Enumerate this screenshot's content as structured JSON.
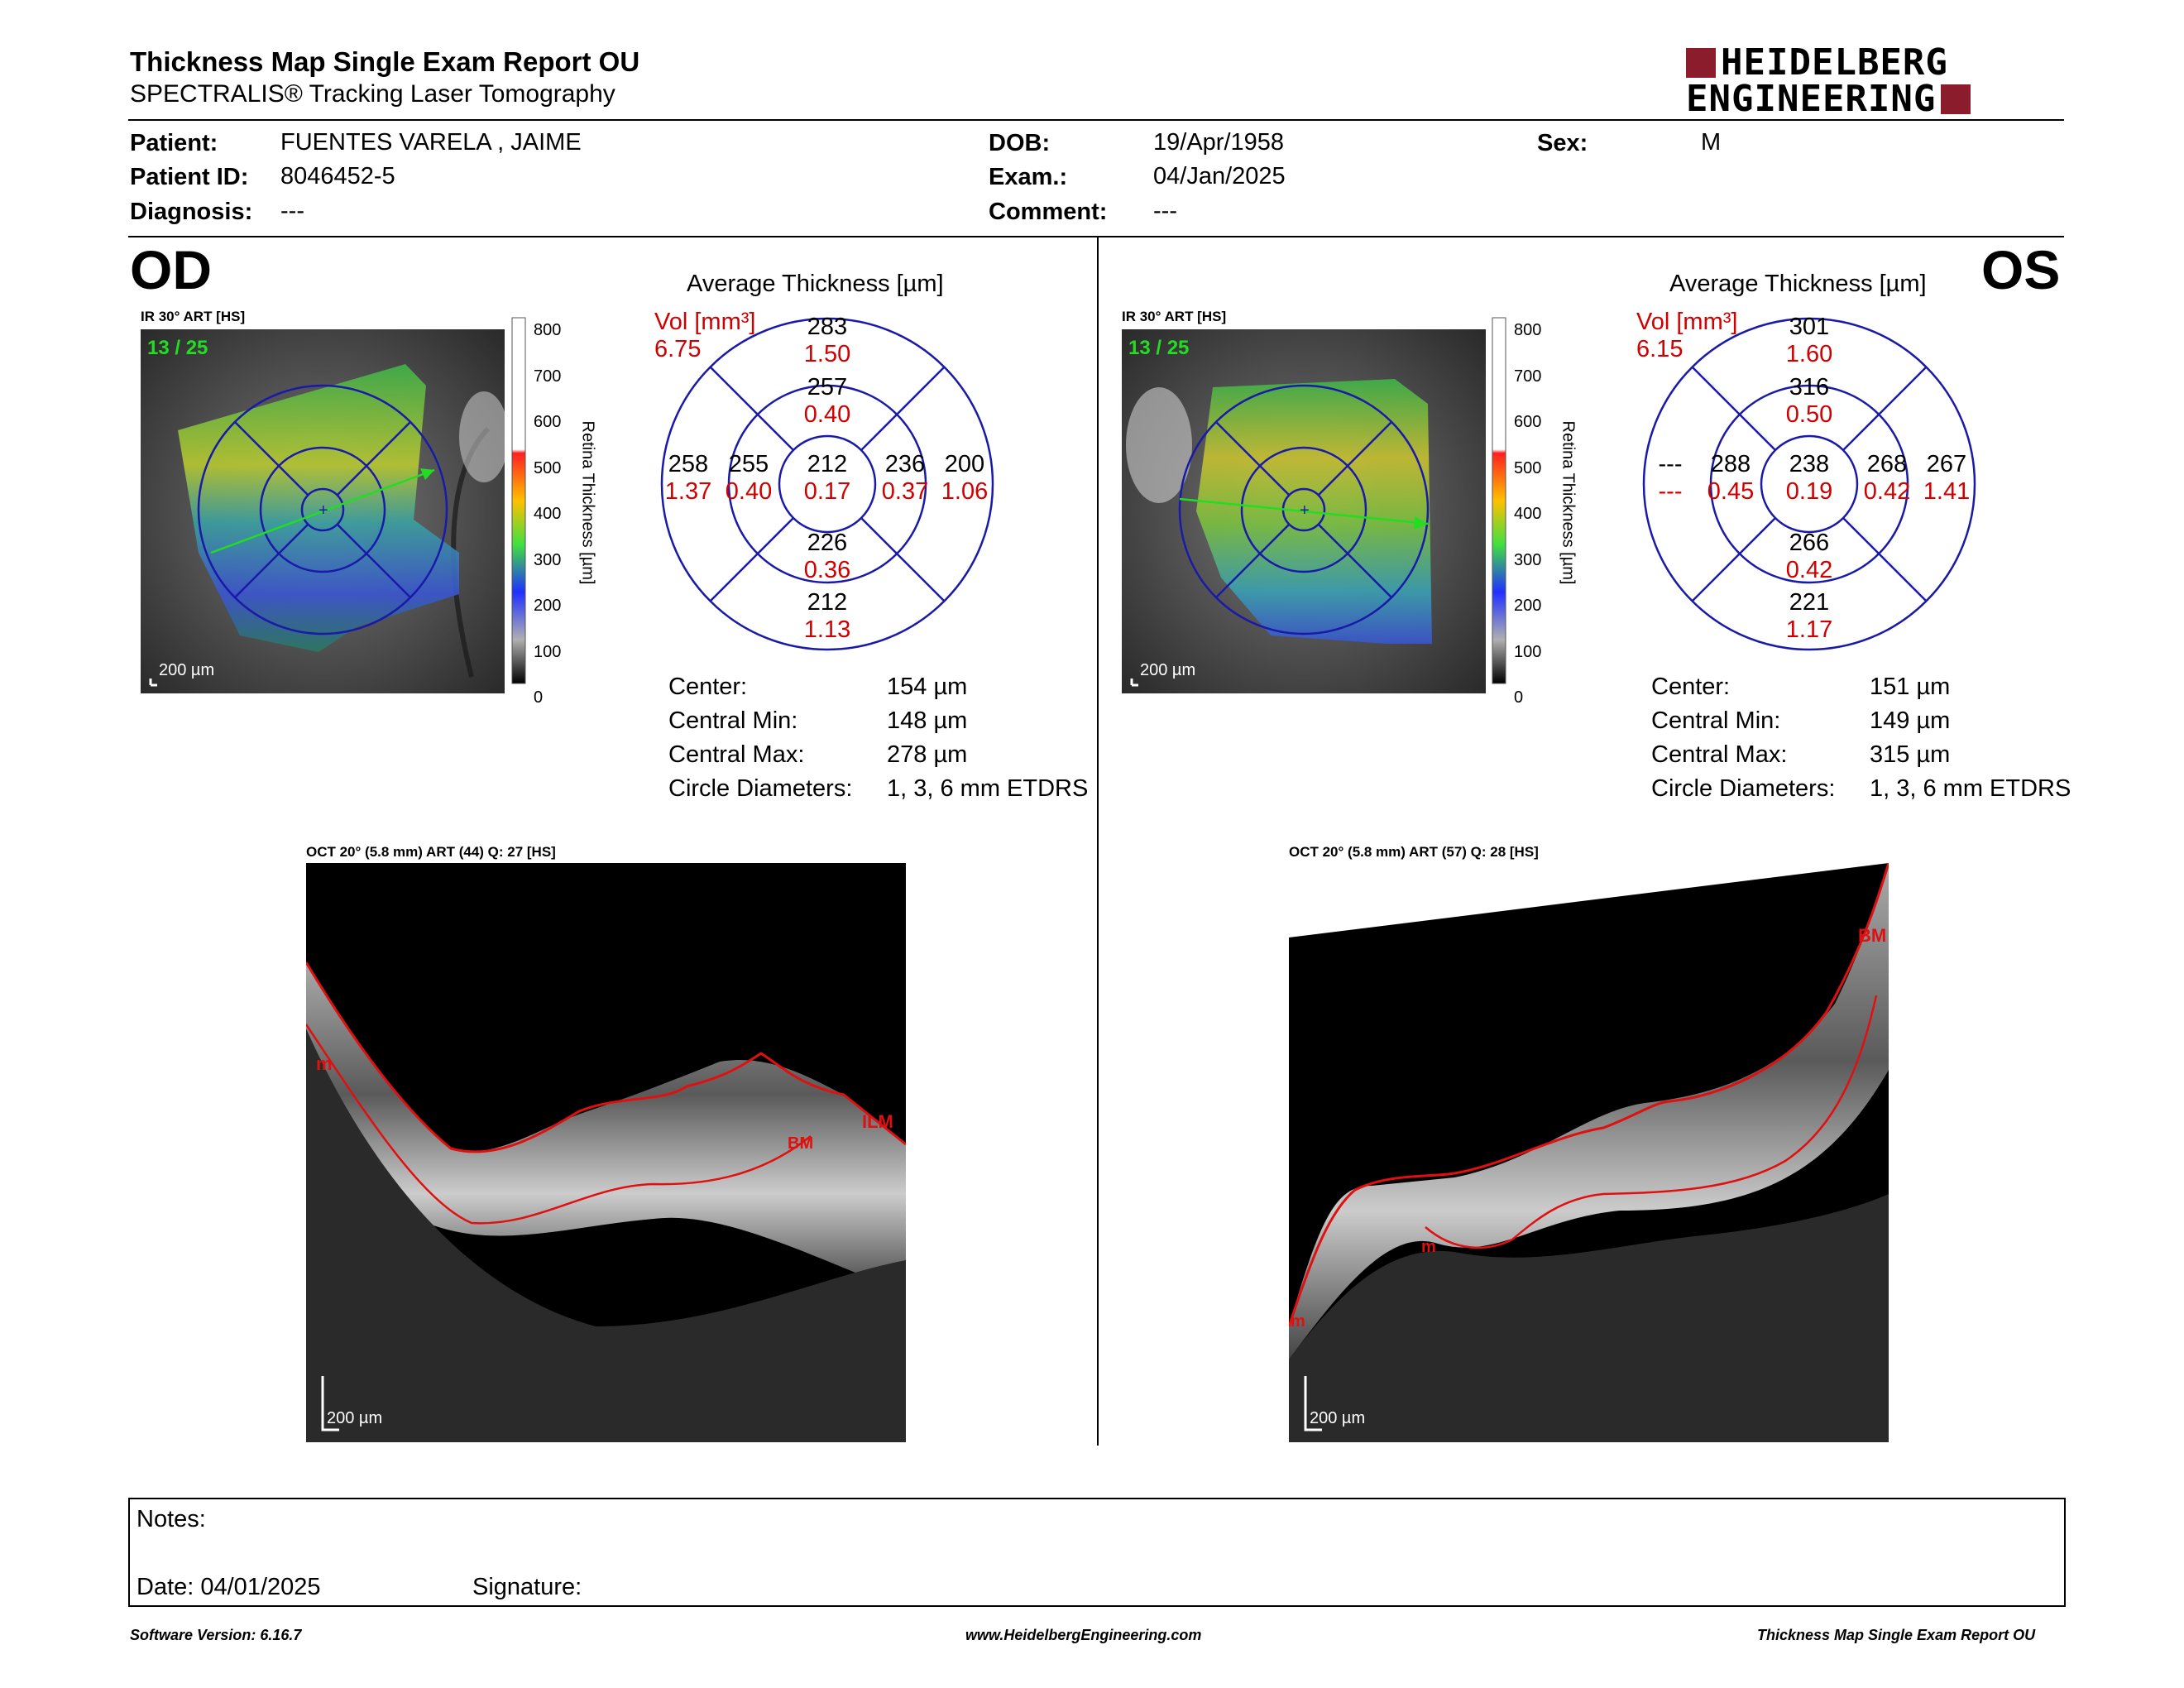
{
  "report": {
    "title": "Thickness Map Single Exam Report OU",
    "subtitle": "SPECTRALIS® Tracking Laser Tomography",
    "logo_line1": "HEIDELBERG",
    "logo_line2": "ENGINEERING"
  },
  "patient": {
    "patient_label": "Patient:",
    "patient_value": "FUENTES VARELA  , JAIME",
    "id_label": "Patient ID:",
    "id_value": "8046452-5",
    "diagnosis_label": "Diagnosis:",
    "diagnosis_value": "---",
    "dob_label": "DOB:",
    "dob_value": "19/Apr/1958",
    "exam_label": "Exam.:",
    "exam_value": "04/Jan/2025",
    "comment_label": "Comment:",
    "comment_value": "---",
    "sex_label": "Sex:",
    "sex_value": "M"
  },
  "od": {
    "eye": "OD",
    "ir_label": "IR 30° ART [HS]",
    "frame": "13 / 25",
    "scale": "200 µm",
    "scale_ticks": [
      "800",
      "700",
      "600",
      "500",
      "400",
      "300",
      "200",
      "100",
      "0"
    ],
    "scale_axis": "Retina  Thickness [µm]",
    "avg_title": "Average Thickness [µm]",
    "vol_label": "Vol [mm³]",
    "vol_value": "6.75",
    "sectors": {
      "outer_top": [
        "283",
        "1.50"
      ],
      "inner_top": [
        "257",
        "0.40"
      ],
      "outer_left": [
        "258",
        "1.37"
      ],
      "inner_left": [
        "255",
        "0.40"
      ],
      "center": [
        "212",
        "0.17"
      ],
      "inner_right": [
        "236",
        "0.37"
      ],
      "outer_right": [
        "200",
        "1.06"
      ],
      "inner_bottom": [
        "226",
        "0.36"
      ],
      "outer_bottom": [
        "212",
        "1.13"
      ]
    },
    "stats": [
      {
        "label": "Center:",
        "value": "154 µm"
      },
      {
        "label": "Central Min:",
        "value": "148 µm"
      },
      {
        "label": "Central Max:",
        "value": "278 µm"
      },
      {
        "label": "Circle Diameters:",
        "value": "1, 3, 6 mm ETDRS"
      }
    ],
    "oct_label": "OCT 20° (5.8 mm) ART (44) Q: 27 [HS]",
    "oct_scale": "200 µm",
    "oct_markers": [
      "m",
      "ILM",
      "BM"
    ]
  },
  "os": {
    "eye": "OS",
    "ir_label": "IR 30° ART [HS]",
    "frame": "13 / 25",
    "scale": "200 µm",
    "scale_ticks": [
      "800",
      "700",
      "600",
      "500",
      "400",
      "300",
      "200",
      "100",
      "0"
    ],
    "scale_axis": "Retina  Thickness [µm]",
    "avg_title": "Average Thickness [µm]",
    "vol_label": "Vol [mm³]",
    "vol_value": "6.15",
    "sectors": {
      "outer_top": [
        "301",
        "1.60"
      ],
      "inner_top": [
        "316",
        "0.50"
      ],
      "outer_left": [
        "---",
        "---"
      ],
      "inner_left": [
        "288",
        "0.45"
      ],
      "center": [
        "238",
        "0.19"
      ],
      "inner_right": [
        "268",
        "0.42"
      ],
      "outer_right": [
        "267",
        "1.41"
      ],
      "inner_bottom": [
        "266",
        "0.42"
      ],
      "outer_bottom": [
        "221",
        "1.17"
      ]
    },
    "stats": [
      {
        "label": "Center:",
        "value": "151 µm"
      },
      {
        "label": "Central Min:",
        "value": "149 µm"
      },
      {
        "label": "Central Max:",
        "value": "315 µm"
      },
      {
        "label": "Circle Diameters:",
        "value": "1, 3, 6 mm ETDRS"
      }
    ],
    "oct_label": "OCT 20° (5.8 mm) ART (57) Q: 28 [HS]",
    "oct_scale": "200 µm",
    "oct_markers": [
      "BM",
      "m",
      "m"
    ]
  },
  "notes": {
    "notes_label": "Notes:",
    "date_label": "Date: 04/01/2025",
    "signature_label": "Signature:"
  },
  "footer": {
    "software": "Software Version: 6.16.7",
    "website": "www.HeidelbergEngineering.com",
    "report_name": "Thickness Map Single Exam Report OU"
  },
  "colors": {
    "brand": "#8b1c2b",
    "grid": "#1a1aa8",
    "volume_red": "#d00000",
    "frame_green": "#22dd22",
    "segmentation_red": "#e01010"
  }
}
